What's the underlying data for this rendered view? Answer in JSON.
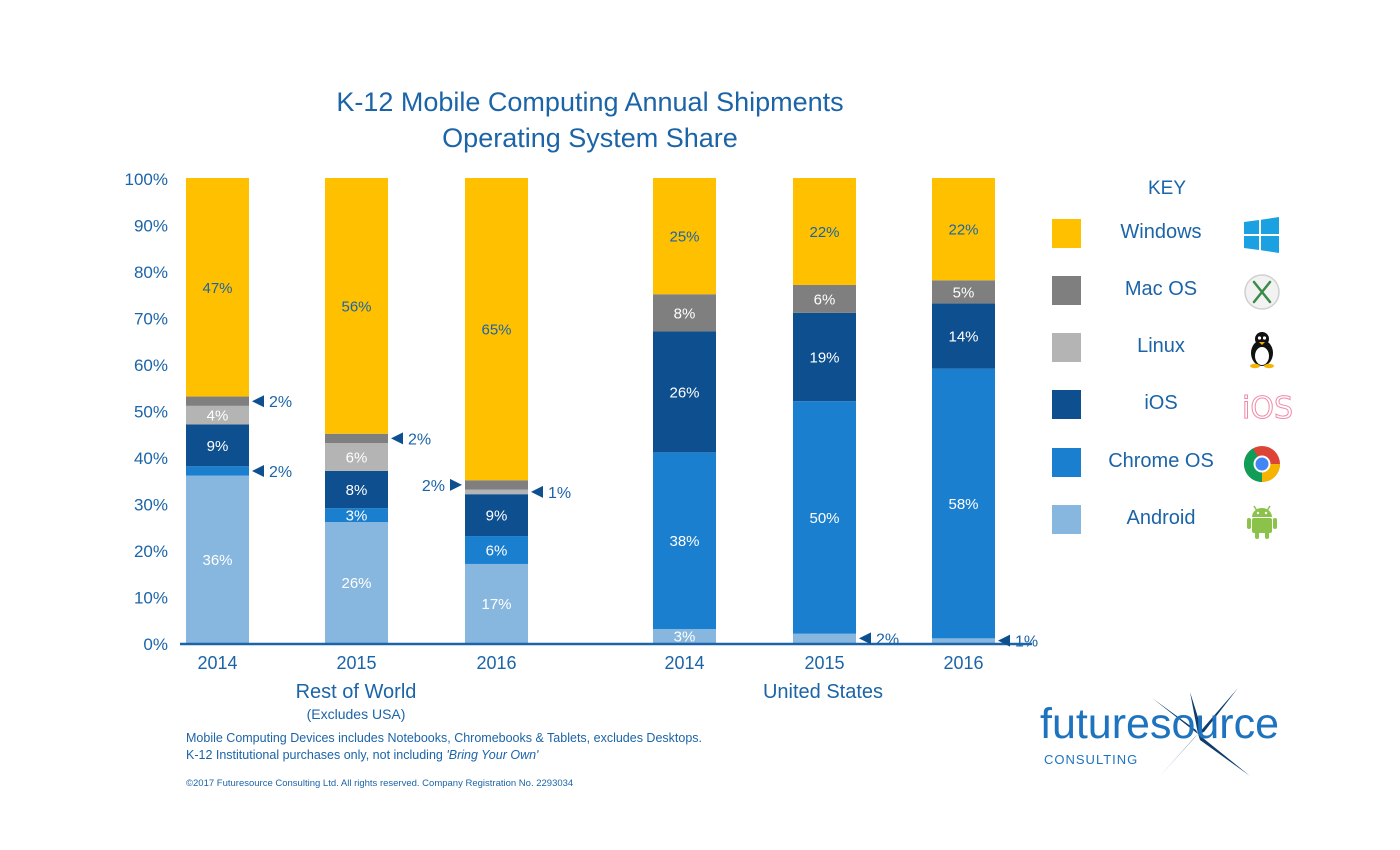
{
  "title_line1": "K-12 Mobile Computing Annual Shipments",
  "title_line2": "Operating System Share",
  "groups": [
    {
      "name": "Rest of World",
      "subtitle": "(Excludes USA)"
    },
    {
      "name": "United States",
      "subtitle": ""
    }
  ],
  "key": {
    "title": "KEY",
    "items": [
      {
        "label": "Windows",
        "color": "#ffc000",
        "icon": "windows-logo-icon"
      },
      {
        "label": "Mac OS",
        "color": "#7f7f7f",
        "icon": "mac-os-x-icon"
      },
      {
        "label": "Linux",
        "color": "#b4b4b4",
        "icon": "linux-penguin-icon"
      },
      {
        "label": "iOS",
        "color": "#0e4f90",
        "icon": "ios-icon"
      },
      {
        "label": "Chrome OS",
        "color": "#1b7fcf",
        "icon": "chrome-icon"
      },
      {
        "label": "Android",
        "color": "#87b7df",
        "icon": "android-icon"
      }
    ]
  },
  "footnote_line1": "Mobile Computing Devices includes Notebooks, Chromebooks & Tablets, excludes Desktops.",
  "footnote_line2_prefix": "K-12 Institutional purchases only, not including ",
  "footnote_line2_em": "'Bring Your Own'",
  "copyright": "©2017 Futuresource Consulting Ltd. All rights reserved. Company Registration No. 2293034",
  "logo": {
    "text": "futuresource",
    "sub": "CONSULTING"
  },
  "chart_data": {
    "type": "bar",
    "stacked": true,
    "y_ticks": [
      "0%",
      "10%",
      "20%",
      "30%",
      "40%",
      "50%",
      "60%",
      "70%",
      "80%",
      "90%",
      "100%"
    ],
    "ylim": [
      0,
      100
    ],
    "categories": [
      "2014",
      "2015",
      "2016",
      "2014",
      "2015",
      "2016"
    ],
    "category_groups": [
      "Rest of World",
      "Rest of World",
      "Rest of World",
      "United States",
      "United States",
      "United States"
    ],
    "series": [
      {
        "name": "Android",
        "values": [
          36,
          26,
          17,
          3,
          2,
          1
        ],
        "labels": [
          "36%",
          "26%",
          "17%",
          "3%",
          "2%",
          "1%"
        ]
      },
      {
        "name": "Chrome OS",
        "values": [
          2,
          3,
          6,
          38,
          50,
          58
        ],
        "labels": [
          "2%",
          "3%",
          "6%",
          "38%",
          "50%",
          "58%"
        ]
      },
      {
        "name": "iOS",
        "values": [
          9,
          8,
          9,
          26,
          19,
          14
        ],
        "labels": [
          "9%",
          "8%",
          "9%",
          "26%",
          "19%",
          "14%"
        ]
      },
      {
        "name": "Linux",
        "values": [
          4,
          6,
          1,
          0,
          0,
          0
        ],
        "labels": [
          "4%",
          "6%",
          "1%",
          "",
          "",
          ""
        ]
      },
      {
        "name": "Mac OS",
        "values": [
          2,
          2,
          2,
          8,
          6,
          5
        ],
        "labels": [
          "2%",
          "2%",
          "2%",
          "8%",
          "6%",
          "5%"
        ]
      },
      {
        "name": "Windows",
        "values": [
          47,
          56,
          65,
          25,
          22,
          22
        ],
        "labels": [
          "47%",
          "56%",
          "65%",
          "25%",
          "22%",
          "22%"
        ]
      }
    ],
    "callouts": [
      {
        "bar": 0,
        "series": "Mac OS",
        "text": "2%",
        "side": "right"
      },
      {
        "bar": 0,
        "series": "Chrome OS",
        "text": "2%",
        "side": "right"
      },
      {
        "bar": 1,
        "series": "Mac OS",
        "text": "2%",
        "side": "right"
      },
      {
        "bar": 2,
        "series": "Mac OS",
        "text": "2%",
        "side": "left"
      },
      {
        "bar": 2,
        "series": "Linux",
        "text": "1%",
        "side": "right"
      },
      {
        "bar": 4,
        "series": "Android",
        "text": "2%",
        "side": "right"
      },
      {
        "bar": 5,
        "series": "Android",
        "text": "1%",
        "side": "right"
      }
    ]
  }
}
